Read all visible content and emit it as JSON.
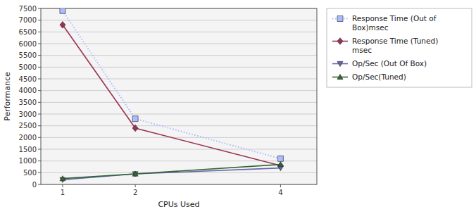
{
  "chart_data": {
    "type": "line",
    "x_label": "CPUs Used",
    "y_label": "Performance",
    "x": [
      1,
      2,
      4
    ],
    "series": [
      {
        "name": "Response Time (Out of\nBox)msec",
        "values": [
          7400,
          2800,
          1100
        ],
        "color": "#aabbff",
        "line_style": "dotted",
        "marker": "square"
      },
      {
        "name": "Response Time (Tuned)\nmsec",
        "values": [
          6800,
          2400,
          800
        ],
        "color": "#993355",
        "line_style": "solid",
        "marker": "diamond"
      },
      {
        "name": "Op/Sec (Out Of Box)",
        "values": [
          200,
          450,
          700
        ],
        "color": "#6666aa",
        "line_style": "solid",
        "marker": "triangle-down"
      },
      {
        "name": "Op/Sec(Tuned)",
        "values": [
          250,
          450,
          850
        ],
        "color": "#336633",
        "line_style": "solid",
        "marker": "triangle-up"
      }
    ],
    "xlim": [
      0.7,
      4.5
    ],
    "ylim": [
      0,
      7500
    ],
    "xticks": [
      1,
      2,
      4
    ],
    "yticks": [
      0,
      500,
      1000,
      1500,
      2000,
      2500,
      3000,
      3500,
      4000,
      4500,
      5000,
      5500,
      6000,
      6500,
      7000,
      7500
    ],
    "grid": "y",
    "legend": "right"
  }
}
